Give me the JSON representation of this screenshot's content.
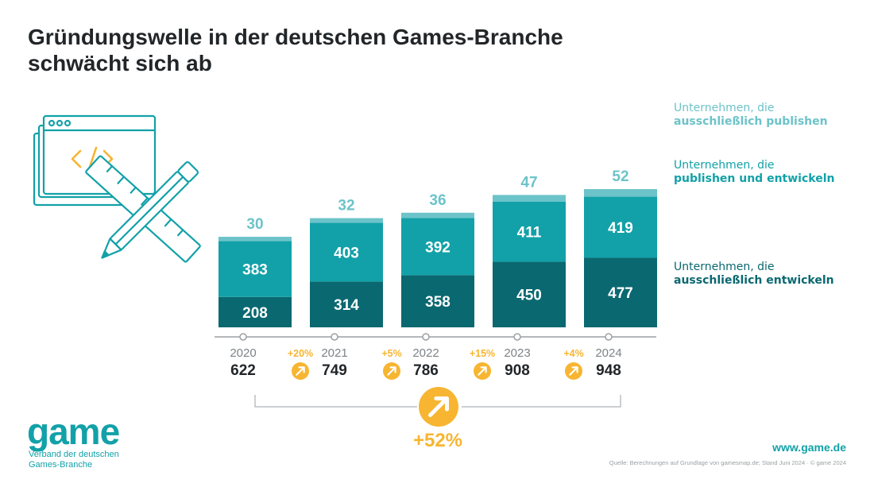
{
  "title": {
    "line1": "Gründungswelle in der deutschen Games-Branche",
    "line2": "schwächt sich ab"
  },
  "colors": {
    "publish_only": "#6cc3c9",
    "publish_and_develop": "#12a1a8",
    "develop_only": "#0a6870",
    "accent": "#f7b531",
    "axis": "#9aa0a4",
    "text_dark": "#222629",
    "teal_text": "#12a1a8"
  },
  "legend": [
    {
      "key": "publish_only",
      "line1": "Unternehmen, die",
      "line2": "ausschließlich publishen",
      "color": "#6cc3c9"
    },
    {
      "key": "publish_and_develop",
      "line1": "Unternehmen, die",
      "line2": "publishen und entwickeln",
      "color": "#12a1a8"
    },
    {
      "key": "develop_only",
      "line1": "Unternehmen, die",
      "line2": "ausschließlich entwickeln",
      "color": "#0a6870"
    }
  ],
  "chart_data": {
    "type": "bar",
    "stacked": true,
    "categories": [
      "2020",
      "2021",
      "2022",
      "2023",
      "2024"
    ],
    "series": [
      {
        "name": "Unternehmen, die ausschließlich entwickeln",
        "values": [
          208,
          314,
          358,
          450,
          477
        ]
      },
      {
        "name": "Unternehmen, die publishen und entwickeln",
        "values": [
          383,
          403,
          392,
          411,
          419
        ]
      },
      {
        "name": "Unternehmen, die ausschließlich publishen",
        "values": [
          30,
          32,
          36,
          47,
          52
        ]
      }
    ],
    "totals": [
      "622",
      "749",
      "786",
      "908",
      "948"
    ],
    "growth": [
      "+20%",
      "+5%",
      "+15%",
      "+4%"
    ],
    "overall_growth": "+52%",
    "grid": false
  },
  "footer": {
    "logo": "game",
    "org_line1": "Verband der deutschen",
    "org_line2": "Games-Branche",
    "url": "www.game.de",
    "source": "Quelle: Berechnungen auf Grundlage von gamesmap.de; Stand Juni 2024 · © game 2024"
  },
  "icons": [
    "browser-code-icon",
    "pencil-ruler-icon",
    "arrow-up-right-icon"
  ]
}
